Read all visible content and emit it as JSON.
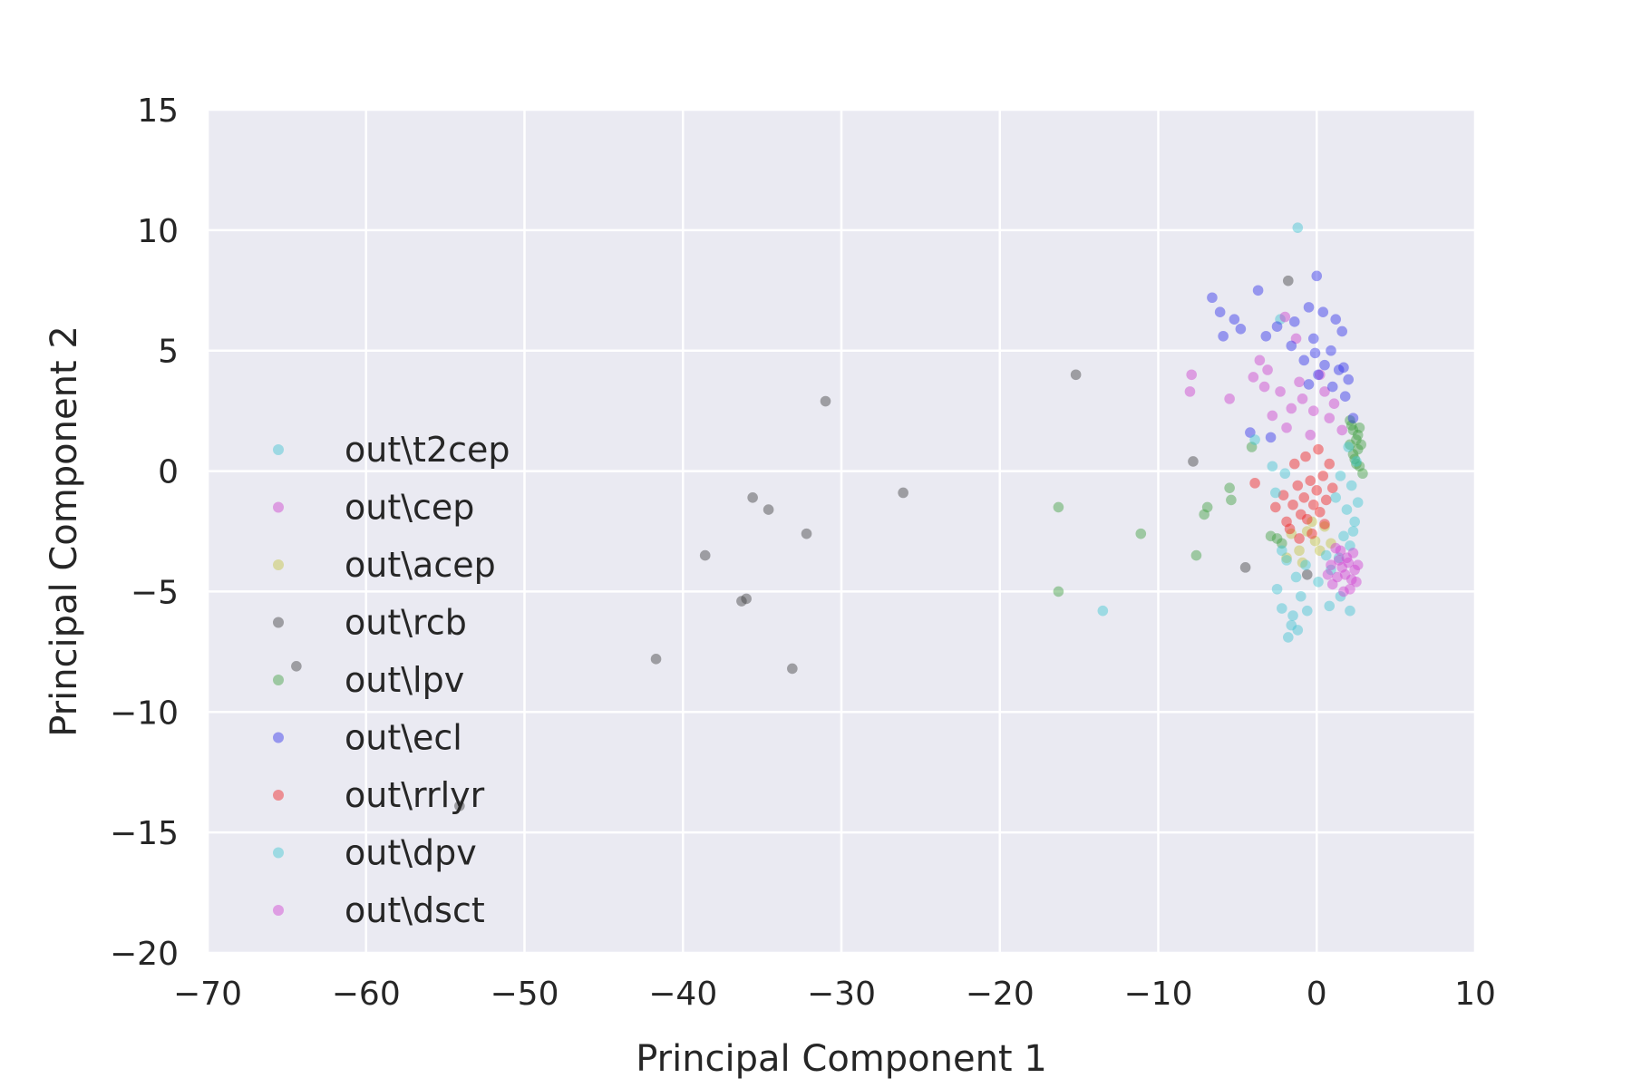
{
  "chart_data": {
    "type": "scatter",
    "title": "",
    "xlabel": "Principal Component 1",
    "ylabel": "Principal Component 2",
    "xlim": [
      -70,
      10
    ],
    "ylim": [
      -20,
      15
    ],
    "xticks": [
      -70,
      -60,
      -50,
      -40,
      -30,
      -20,
      -10,
      0,
      10
    ],
    "yticks": [
      15,
      10,
      5,
      0,
      -5,
      -10,
      -15,
      -20
    ],
    "xtick_labels": [
      "−70",
      "−60",
      "−50",
      "−40",
      "−30",
      "−20",
      "−10",
      "0",
      "10"
    ],
    "ytick_labels": [
      "15",
      "10",
      "5",
      "0",
      "−5",
      "−10",
      "−15",
      "−20"
    ],
    "grid": true,
    "legend_location": "lower-left",
    "background_color": "#eaeaf2",
    "grid_color": "#ffffff",
    "series": [
      {
        "name": "out\\t2cep",
        "color": "#40c4d0",
        "points": [
          [
            -1.2,
            10.1
          ],
          [
            -2.3,
            6.3
          ],
          [
            -1.8,
            -6.9
          ],
          [
            -2.2,
            -5.7
          ],
          [
            -1.6,
            -6.4
          ],
          [
            -1.0,
            -5.2
          ],
          [
            -2.5,
            -4.9
          ],
          [
            -0.6,
            -5.8
          ],
          [
            0.8,
            -5.6
          ],
          [
            1.5,
            -5.2
          ],
          [
            2.1,
            -5.8
          ],
          [
            -2.8,
            0.2
          ],
          [
            -2.0,
            -0.1
          ],
          [
            -1.5,
            -6.0
          ],
          [
            -1.2,
            -6.6
          ]
        ]
      },
      {
        "name": "out\\cep",
        "color": "#cc40cc",
        "points": [
          [
            -7.9,
            4.0
          ],
          [
            -8.0,
            3.3
          ],
          [
            -5.5,
            3.0
          ],
          [
            -3.6,
            4.6
          ],
          [
            -2.0,
            6.4
          ],
          [
            -1.3,
            5.5
          ],
          [
            -4.0,
            3.9
          ],
          [
            -3.1,
            4.2
          ],
          [
            -2.3,
            3.3
          ],
          [
            -1.6,
            2.6
          ],
          [
            -0.9,
            3.0
          ],
          [
            -0.2,
            2.5
          ],
          [
            0.5,
            3.3
          ],
          [
            1.1,
            2.8
          ],
          [
            -2.8,
            2.3
          ],
          [
            -1.9,
            1.8
          ],
          [
            -0.4,
            1.5
          ],
          [
            0.8,
            2.2
          ],
          [
            1.6,
            1.7
          ],
          [
            -3.3,
            3.5
          ],
          [
            -1.1,
            3.7
          ],
          [
            0.2,
            4.0
          ]
        ]
      },
      {
        "name": "out\\acep",
        "color": "#c4c440",
        "points": [
          [
            -1.6,
            -2.6
          ],
          [
            -1.1,
            -3.3
          ],
          [
            -0.6,
            -2.5
          ],
          [
            -0.1,
            -2.9
          ],
          [
            0.5,
            -2.3
          ],
          [
            -1.9,
            -3.6
          ],
          [
            -0.9,
            -3.8
          ],
          [
            0.2,
            -3.3
          ],
          [
            0.9,
            -3.0
          ],
          [
            -0.3,
            -2.1
          ]
        ]
      },
      {
        "name": "out\\rcb",
        "color": "#404040",
        "points": [
          [
            -64.4,
            -8.1
          ],
          [
            -54.1,
            -13.9
          ],
          [
            -41.7,
            -7.8
          ],
          [
            -38.6,
            -3.5
          ],
          [
            -36.3,
            -5.4
          ],
          [
            -36.0,
            -5.3
          ],
          [
            -35.6,
            -1.1
          ],
          [
            -34.6,
            -1.6
          ],
          [
            -33.1,
            -8.2
          ],
          [
            -32.2,
            -2.6
          ],
          [
            -31.0,
            2.9
          ],
          [
            -26.1,
            -0.9
          ],
          [
            -15.2,
            4.0
          ],
          [
            -7.8,
            0.4
          ],
          [
            -4.5,
            -4.0
          ],
          [
            -1.8,
            7.9
          ],
          [
            -0.6,
            -4.3
          ]
        ]
      },
      {
        "name": "out\\lpv",
        "color": "#40a040",
        "points": [
          [
            -16.3,
            -1.5
          ],
          [
            -16.3,
            -5.0
          ],
          [
            -11.1,
            -2.6
          ],
          [
            -7.6,
            -3.5
          ],
          [
            -7.1,
            -1.8
          ],
          [
            -6.9,
            -1.5
          ],
          [
            -5.5,
            -0.7
          ],
          [
            -5.4,
            -1.2
          ],
          [
            -4.1,
            1.0
          ],
          [
            -2.9,
            -2.7
          ],
          [
            -2.5,
            -2.8
          ],
          [
            -2.2,
            -3.0
          ],
          [
            2.1,
            2.1
          ],
          [
            2.3,
            1.7
          ],
          [
            2.5,
            1.3
          ],
          [
            2.6,
            0.9
          ],
          [
            2.4,
            0.5
          ],
          [
            2.7,
            0.2
          ],
          [
            2.2,
            1.9
          ],
          [
            2.6,
            1.5
          ],
          [
            2.8,
            1.1
          ],
          [
            2.3,
            0.7
          ],
          [
            2.5,
            0.3
          ],
          [
            2.9,
            -0.1
          ],
          [
            2.1,
            1.1
          ],
          [
            2.7,
            1.8
          ]
        ]
      },
      {
        "name": "out\\ecl",
        "color": "#3030e8",
        "points": [
          [
            -6.6,
            7.2
          ],
          [
            -6.1,
            6.6
          ],
          [
            -5.2,
            6.3
          ],
          [
            -3.7,
            7.5
          ],
          [
            -4.8,
            5.9
          ],
          [
            -3.2,
            5.6
          ],
          [
            -2.5,
            6.0
          ],
          [
            -1.4,
            6.2
          ],
          [
            -0.5,
            6.8
          ],
          [
            0.0,
            8.1
          ],
          [
            0.4,
            6.6
          ],
          [
            1.2,
            6.3
          ],
          [
            1.6,
            5.8
          ],
          [
            -1.6,
            5.2
          ],
          [
            -0.2,
            5.5
          ],
          [
            0.9,
            5.0
          ],
          [
            -0.8,
            4.6
          ],
          [
            0.5,
            4.4
          ],
          [
            1.4,
            4.2
          ],
          [
            2.0,
            3.8
          ],
          [
            0.1,
            4.0
          ],
          [
            -0.5,
            3.6
          ],
          [
            1.0,
            3.5
          ],
          [
            1.8,
            3.1
          ],
          [
            -4.2,
            1.6
          ],
          [
            -2.9,
            1.4
          ],
          [
            2.3,
            2.2
          ],
          [
            -5.9,
            5.6
          ],
          [
            -0.1,
            4.9
          ],
          [
            1.7,
            4.3
          ]
        ]
      },
      {
        "name": "out\\rrlyr",
        "color": "#f02020",
        "points": [
          [
            -3.9,
            -0.5
          ],
          [
            -2.6,
            -1.5
          ],
          [
            -2.1,
            -1.0
          ],
          [
            -1.9,
            -2.1
          ],
          [
            -1.5,
            -1.4
          ],
          [
            -1.2,
            -0.6
          ],
          [
            -1.0,
            -1.8
          ],
          [
            -0.8,
            -1.1
          ],
          [
            -0.6,
            -2.0
          ],
          [
            -0.4,
            -0.4
          ],
          [
            -0.2,
            -1.4
          ],
          [
            0.0,
            -0.8
          ],
          [
            0.2,
            -1.7
          ],
          [
            0.4,
            -0.2
          ],
          [
            0.6,
            -1.2
          ],
          [
            0.8,
            0.3
          ],
          [
            1.0,
            -0.7
          ],
          [
            -1.4,
            0.3
          ],
          [
            -0.7,
            0.6
          ],
          [
            0.1,
            0.9
          ],
          [
            -1.7,
            -2.4
          ],
          [
            -0.3,
            -2.6
          ],
          [
            0.5,
            -2.2
          ],
          [
            -1.1,
            -2.8
          ]
        ]
      },
      {
        "name": "out\\dpv",
        "color": "#40c8d0",
        "points": [
          [
            -13.5,
            -5.8
          ],
          [
            -3.9,
            1.3
          ],
          [
            -2.6,
            -0.9
          ],
          [
            -2.2,
            -3.3
          ],
          [
            -1.3,
            -4.4
          ],
          [
            -0.7,
            -3.9
          ],
          [
            0.1,
            -4.6
          ],
          [
            0.9,
            -4.1
          ],
          [
            1.4,
            -3.6
          ],
          [
            1.7,
            -2.7
          ],
          [
            2.1,
            -3.1
          ],
          [
            2.4,
            -2.1
          ],
          [
            1.9,
            -1.6
          ],
          [
            2.2,
            -0.6
          ],
          [
            2.5,
            0.4
          ],
          [
            2.0,
            1.0
          ],
          [
            1.5,
            -0.2
          ],
          [
            1.2,
            -1.1
          ],
          [
            2.3,
            -2.5
          ],
          [
            0.6,
            -3.5
          ],
          [
            -1.9,
            -3.7
          ],
          [
            2.6,
            -1.3
          ]
        ]
      },
      {
        "name": "out\\dsct",
        "color": "#d040d0",
        "points": [
          [
            1.0,
            -4.7
          ],
          [
            1.3,
            -4.4
          ],
          [
            1.6,
            -4.0
          ],
          [
            1.8,
            -4.3
          ],
          [
            2.0,
            -3.8
          ],
          [
            2.2,
            -4.5
          ],
          [
            2.4,
            -4.1
          ],
          [
            1.5,
            -3.3
          ],
          [
            1.9,
            -3.6
          ],
          [
            2.3,
            -3.4
          ],
          [
            0.9,
            -3.9
          ],
          [
            1.2,
            -3.2
          ],
          [
            2.5,
            -4.6
          ],
          [
            1.7,
            -5.0
          ],
          [
            2.1,
            -4.9
          ],
          [
            0.7,
            -4.3
          ],
          [
            1.4,
            -3.7
          ],
          [
            2.6,
            -3.9
          ]
        ]
      }
    ]
  }
}
